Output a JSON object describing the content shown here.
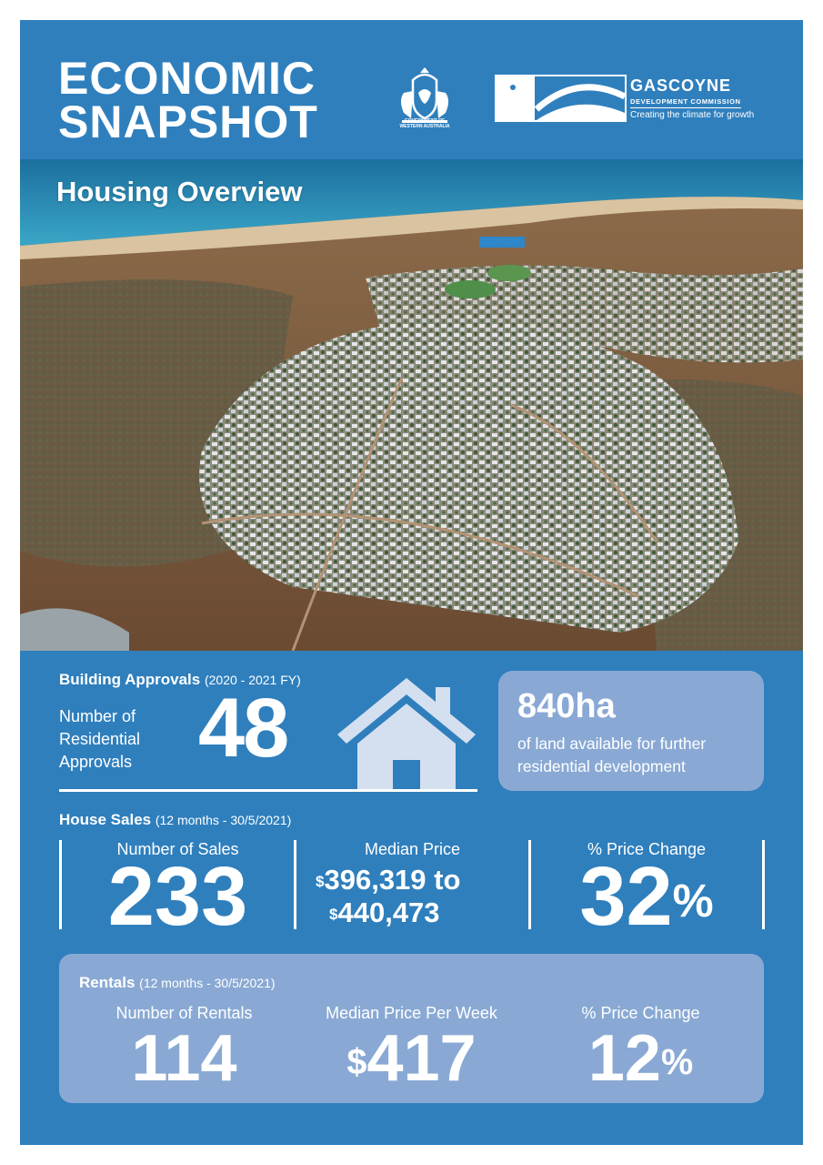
{
  "header": {
    "title_line1": "ECONOMIC",
    "title_line2": "SNAPSHOT",
    "gov_text_line1": "GOVERNMENT OF",
    "gov_text_line2": "WESTERN AUSTRALIA",
    "gdc_name": "GASCOYNE",
    "gdc_subtitle": "DEVELOPMENT COMMISSION",
    "gdc_tagline": "Creating the climate for growth"
  },
  "photo": {
    "title": "Housing Overview"
  },
  "building_approvals": {
    "heading": "Building Approvals",
    "period": "(2020 - 2021 FY)",
    "label_line1": "Number of",
    "label_line2": "Residential",
    "label_line3": "Approvals",
    "value": "48"
  },
  "land": {
    "value": "840ha",
    "desc_line1": "of land available for further",
    "desc_line2": "residential development"
  },
  "house_sales": {
    "heading": "House Sales",
    "period": "(12 months - 30/5/2021)",
    "sales_label": "Number of Sales",
    "sales_value": "233",
    "median_label": "Median Price",
    "currency": "$",
    "median_low": "396,319",
    "to_word": "to",
    "median_high": "440,473",
    "change_label": "% Price Change",
    "change_value": "32",
    "percent": "%"
  },
  "rentals": {
    "heading": "Rentals",
    "period": "(12 months - 30/5/2021)",
    "count_label": "Number of Rentals",
    "count_value": "114",
    "median_label": "Median Price Per Week",
    "currency": "$",
    "median_value": "417",
    "change_label": "% Price Change",
    "change_value": "12",
    "percent": "%"
  },
  "colors": {
    "primary_blue": "#2f7fbd",
    "light_box": "#89a9d4",
    "house_icon": "#d4e0f0"
  }
}
